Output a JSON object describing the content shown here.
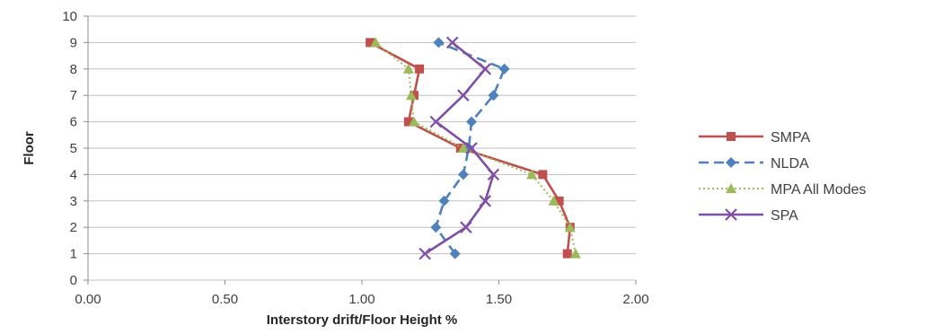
{
  "chart_data": {
    "type": "line",
    "xlabel": "Interstory drift/Floor Height %",
    "ylabel": "Floor",
    "xlim": [
      0,
      2
    ],
    "ylim": [
      0,
      10
    ],
    "x_ticks": [
      "0.00",
      "0.50",
      "1.00",
      "1.50",
      "2.00"
    ],
    "y_ticks": [
      "0",
      "1",
      "2",
      "3",
      "4",
      "5",
      "6",
      "7",
      "8",
      "9",
      "10"
    ],
    "grid": "horizontal",
    "legend_position": "right",
    "series": [
      {
        "name": "SMPA",
        "color": "#c0504d",
        "marker": "square",
        "line": "solid",
        "points": [
          [
            1.75,
            1
          ],
          [
            1.76,
            2
          ],
          [
            1.72,
            3
          ],
          [
            1.66,
            4
          ],
          [
            1.36,
            5
          ],
          [
            1.17,
            6
          ],
          [
            1.19,
            7
          ],
          [
            1.21,
            8
          ],
          [
            1.03,
            9
          ]
        ]
      },
      {
        "name": "NLDA",
        "color": "#4f81bd",
        "marker": "diamond",
        "line": "dashed",
        "points": [
          [
            1.34,
            1
          ],
          [
            1.27,
            2
          ],
          [
            1.3,
            3
          ],
          [
            1.37,
            4
          ],
          [
            1.39,
            5
          ],
          [
            1.4,
            6
          ],
          [
            1.48,
            7
          ],
          [
            1.52,
            8
          ],
          [
            1.28,
            9
          ]
        ]
      },
      {
        "name": "MPA All Modes",
        "color": "#9bbb59",
        "marker": "triangle",
        "line": "dotted",
        "points": [
          [
            1.78,
            1
          ],
          [
            1.76,
            2
          ],
          [
            1.7,
            3
          ],
          [
            1.62,
            4
          ],
          [
            1.37,
            5
          ],
          [
            1.19,
            6
          ],
          [
            1.18,
            7
          ],
          [
            1.17,
            8
          ],
          [
            1.05,
            9
          ]
        ]
      },
      {
        "name": "SPA",
        "color": "#7f4fa6",
        "marker": "x",
        "line": "solid",
        "points": [
          [
            1.23,
            1
          ],
          [
            1.38,
            2
          ],
          [
            1.45,
            3
          ],
          [
            1.48,
            4
          ],
          [
            1.4,
            5
          ],
          [
            1.27,
            6
          ],
          [
            1.37,
            7
          ],
          [
            1.45,
            8
          ],
          [
            1.33,
            9
          ]
        ]
      }
    ]
  }
}
